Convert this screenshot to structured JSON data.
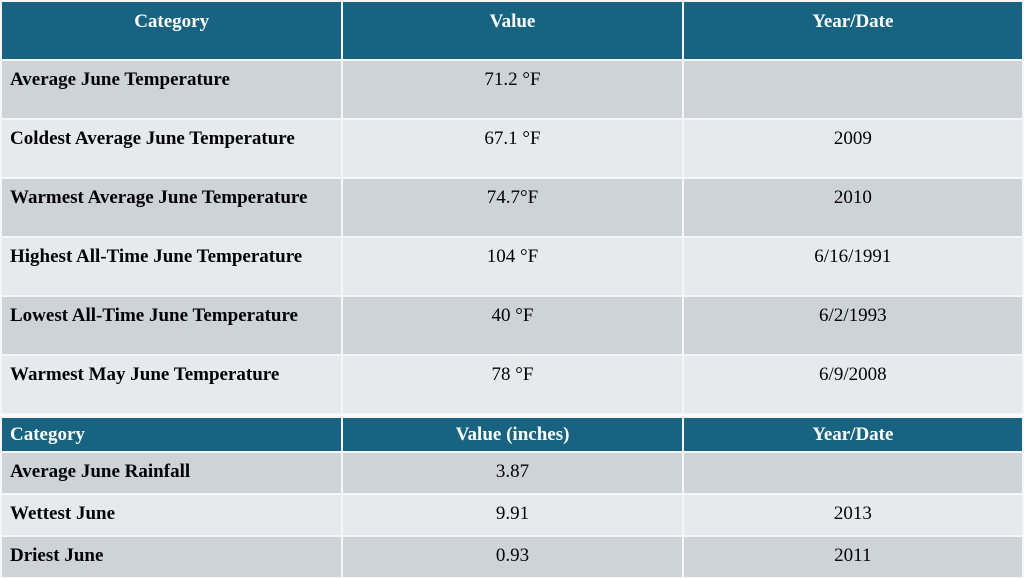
{
  "colors": {
    "header_bg": "#186380",
    "header_text": "#ffffff",
    "row_dark": "#ced2d9",
    "row_light": "#e7eaed",
    "body_text": "#000000",
    "separator": "#f5f6f7"
  },
  "temperature_table": {
    "headers": [
      "Category",
      "Value",
      "Year/Date"
    ],
    "rows": [
      {
        "category": "Average June Temperature",
        "value": "71.2 °F",
        "date": ""
      },
      {
        "category": "Coldest Average June Temperature",
        "value": "67.1 °F",
        "date": "2009"
      },
      {
        "category": "Warmest Average June Temperature",
        "value": "74.7°F",
        "date": "2010"
      },
      {
        "category": "Highest All-Time June Temperature",
        "value": "104 °F",
        "date": "6/16/1991"
      },
      {
        "category": "Lowest All-Time June Temperature",
        "value": "40 °F",
        "date": "6/2/1993"
      },
      {
        "category": "Warmest May June Temperature",
        "value": "78 °F",
        "date": "6/9/2008"
      }
    ]
  },
  "rainfall_table": {
    "headers": [
      "Category",
      "Value (inches)",
      "Year/Date"
    ],
    "rows": [
      {
        "category": "Average June Rainfall",
        "value": "3.87",
        "date": ""
      },
      {
        "category": "Wettest June",
        "value": "9.91",
        "date": "2013"
      },
      {
        "category": "Driest June",
        "value": "0.93",
        "date": "2011"
      }
    ]
  }
}
